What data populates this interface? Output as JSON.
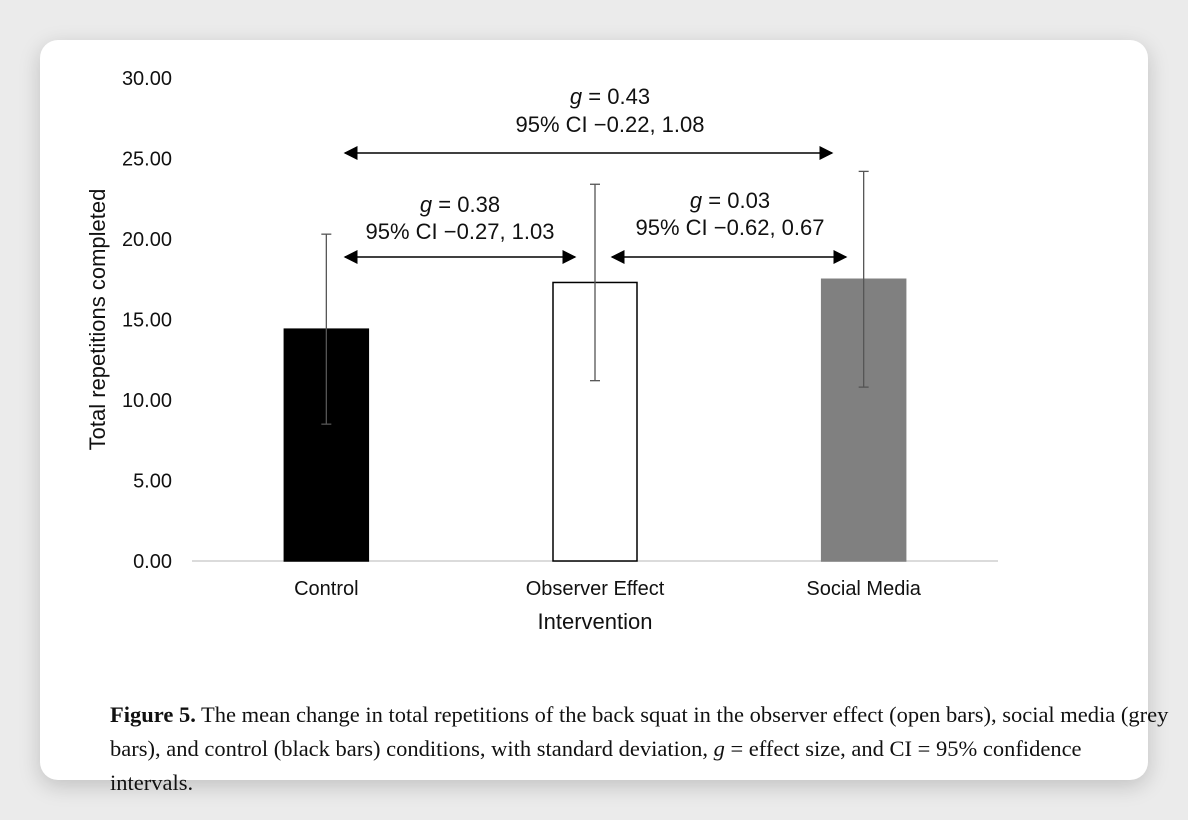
{
  "chart_data": {
    "type": "bar",
    "categories": [
      "Control",
      "Observer Effect",
      "Social Media"
    ],
    "values": [
      14.4,
      17.3,
      17.5
    ],
    "error_sd": [
      5.9,
      6.1,
      6.7
    ],
    "bar_colors": [
      "#000000",
      "#ffffff",
      "#808080"
    ],
    "ylim": [
      0,
      30
    ],
    "yticks": [
      "0.00",
      "5.00",
      "10.00",
      "15.00",
      "20.00",
      "25.00",
      "30.00"
    ],
    "ylabel": "Total repetitions completed",
    "xlabel": "Intervention",
    "grid": false,
    "annotations": [
      {
        "from": 0,
        "to": 2,
        "g": "0.43",
        "ci": "95% CI −0.22, 1.08"
      },
      {
        "from": 0,
        "to": 1,
        "g": "0.38",
        "ci": "95% CI −0.27, 1.03"
      },
      {
        "from": 1,
        "to": 2,
        "g": "0.03",
        "ci": "95% CI −0.62, 0.67"
      }
    ]
  },
  "caption": {
    "label": "Figure 5.",
    "text_before_g": " The mean change in total repetitions of the back squat in the observer effect (open bars), social media (grey bars), and control (black bars) conditions, with standard deviation, ",
    "g_symbol": "g",
    "text_after_g": " = effect size, and CI = 95% confidence intervals."
  }
}
